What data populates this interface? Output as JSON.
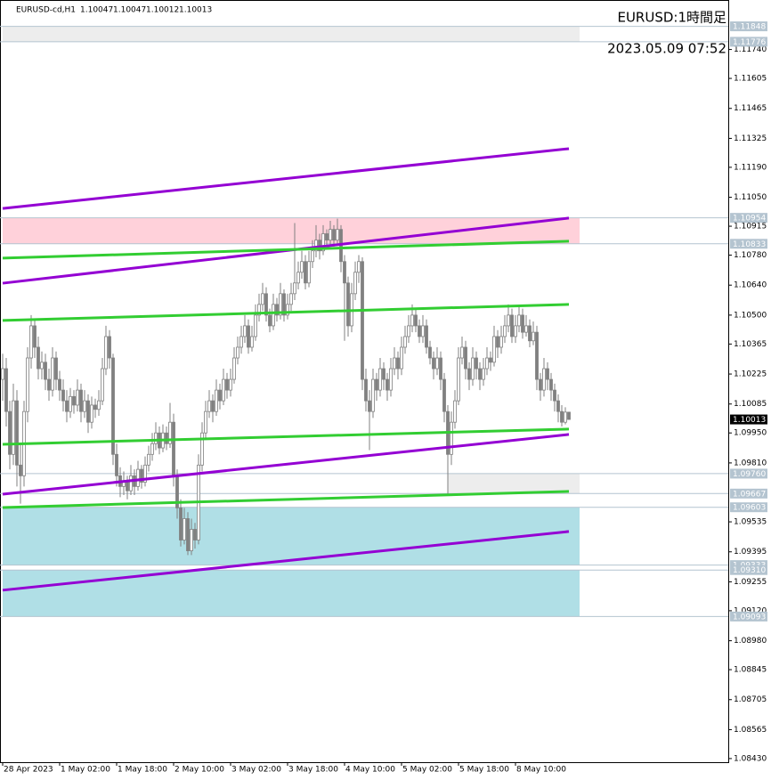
{
  "chart_data": {
    "type": "candlestick",
    "symbol": "EURUSD-cd,H1",
    "title": "EURUSD:1時間足",
    "subtitle": "2023.05.09 07:52",
    "ylim": [
      1.08413,
      1.11971
    ],
    "xlim": [
      -0.75,
      203.75
    ],
    "yticks": [
      {
        "value": 1.1174,
        "label": "1.11740"
      },
      1.11605,
      1.11465,
      1.11325,
      {
        "value": 1.1119,
        "label": "1.11190"
      },
      {
        "value": 1.1105,
        "label": "1.11050"
      },
      1.10915,
      {
        "value": 1.1078,
        "label": "1.10780"
      },
      {
        "value": 1.1064,
        "label": "1.10640"
      },
      {
        "value": 1.105,
        "label": "1.10500"
      },
      1.10365,
      1.10225,
      1.10085,
      {
        "value": 1.0995,
        "label": "1.09950"
      },
      {
        "value": 1.0981,
        "label": "1.09810"
      },
      1.09535,
      1.09395,
      1.09255,
      {
        "value": 1.0912,
        "label": "1.09120"
      },
      {
        "value": 1.0898,
        "label": "1.08980"
      },
      1.08845,
      1.08705,
      1.08565,
      {
        "value": 1.0843,
        "label": "1.08430"
      }
    ],
    "xticks": [
      {
        "value": 0,
        "label": "28 Apr 2023"
      },
      {
        "value": 16,
        "label": "1 May 02:00"
      },
      {
        "value": 32,
        "label": "1 May 18:00"
      },
      {
        "value": 48,
        "label": "2 May 10:00"
      },
      {
        "value": 64,
        "label": "3 May 02:00"
      },
      {
        "value": 80,
        "label": "3 May 18:00"
      },
      {
        "value": 96,
        "label": "4 May 10:00"
      },
      {
        "value": 112,
        "label": "5 May 02:00"
      },
      {
        "value": 128,
        "label": "5 May 18:00"
      },
      {
        "value": 144,
        "label": "8 May 10:00"
      }
    ],
    "levels": [
      1.11848,
      1.11776,
      1.10954,
      1.10833,
      {
        "value": 1.0976,
        "label": "1.09760"
      },
      1.09667,
      1.09603,
      1.09333,
      {
        "value": 1.0931,
        "label": "1.09310"
      },
      1.09093
    ],
    "zones": [
      {
        "from": 1.11848,
        "to": 1.11776,
        "x": [
          0,
          162
        ],
        "color": "#ededed"
      },
      {
        "from": 1.10954,
        "to": 1.10833,
        "x": [
          0,
          162
        ],
        "color": "#ffd1da"
      },
      {
        "from": 1.0976,
        "to": 1.09667,
        "x": [
          125,
          162
        ],
        "color": "#ededed"
      },
      {
        "from": 1.09603,
        "to": 1.09333,
        "x": [
          0,
          162
        ],
        "color": "#b0dfe6"
      },
      {
        "from": 1.0931,
        "to": 1.09093,
        "x": [
          0,
          162
        ],
        "color": "#b0dfe6"
      }
    ],
    "trendlines": [
      {
        "color": "#9400d3",
        "x": [
          0,
          159
        ],
        "y": [
          1.10998,
          1.11277
        ]
      },
      {
        "color": "#9400d3",
        "x": [
          0,
          159
        ],
        "y": [
          1.10649,
          1.10953
        ]
      },
      {
        "color": "#9400d3",
        "x": [
          0,
          159
        ],
        "y": [
          1.09664,
          1.09943
        ]
      },
      {
        "color": "#9400d3",
        "x": [
          0,
          159
        ],
        "y": [
          1.09216,
          1.0949
        ]
      },
      {
        "color": "#32cd32",
        "x": [
          0,
          159
        ],
        "y": [
          1.10766,
          1.10845
        ]
      },
      {
        "color": "#32cd32",
        "x": [
          0,
          159
        ],
        "y": [
          1.10475,
          1.1055
        ]
      },
      {
        "color": "#32cd32",
        "x": [
          0,
          159
        ],
        "y": [
          1.09897,
          1.09968
        ]
      },
      {
        "color": "#32cd32",
        "x": [
          0,
          159
        ],
        "y": [
          1.09602,
          1.09677
        ]
      }
    ],
    "ohlc": [
      [
        1.102,
        1.1032,
        1.101,
        1.1025
      ],
      [
        1.1025,
        1.103,
        1.0998,
        1.1005
      ],
      [
        1.1005,
        1.101,
        1.0978,
        1.0985
      ],
      [
        1.0985,
        1.1018,
        1.098,
        1.101
      ],
      [
        1.101,
        1.1015,
        1.097,
        1.098
      ],
      [
        1.098,
        1.099,
        1.0962,
        1.0975
      ],
      [
        1.0975,
        1.101,
        1.097,
        1.1005
      ],
      [
        1.1005,
        1.1035,
        1.1,
        1.103
      ],
      [
        1.103,
        1.105,
        1.1025,
        1.1045
      ],
      [
        1.1045,
        1.1048,
        1.103,
        1.1035
      ],
      [
        1.1035,
        1.104,
        1.102,
        1.1025
      ],
      [
        1.1025,
        1.1033,
        1.102,
        1.1028
      ],
      [
        1.1028,
        1.1032,
        1.1015,
        1.102
      ],
      [
        1.102,
        1.1025,
        1.101,
        1.1015
      ],
      [
        1.1015,
        1.1035,
        1.1012,
        1.103
      ],
      [
        1.103,
        1.1033,
        1.1015,
        1.102
      ],
      [
        1.102,
        1.1024,
        1.101,
        1.1015
      ],
      [
        1.1015,
        1.102,
        1.1005,
        1.101
      ],
      [
        1.101,
        1.1015,
        1.1,
        1.1005
      ],
      [
        1.1005,
        1.1016,
        1.1002,
        1.1012
      ],
      [
        1.1012,
        1.1015,
        1.1004,
        1.1008
      ],
      [
        1.1008,
        1.102,
        1.1005,
        1.1015
      ],
      [
        1.1015,
        1.1018,
        1.1,
        1.1005
      ],
      [
        1.1005,
        1.1015,
        1.1002,
        1.101
      ],
      [
        1.101,
        1.1013,
        1.0995,
        1.1
      ],
      [
        1.1,
        1.1012,
        1.0997,
        1.1008
      ],
      [
        1.1008,
        1.1011,
        1.1002,
        1.1006
      ],
      [
        1.1006,
        1.1015,
        1.1003,
        1.101
      ],
      [
        1.101,
        1.103,
        1.1008,
        1.1025
      ],
      [
        1.1025,
        1.1045,
        1.1022,
        1.104
      ],
      [
        1.104,
        1.1043,
        1.1025,
        1.103
      ],
      [
        1.103,
        1.1032,
        1.098,
        1.0985
      ],
      [
        1.0985,
        1.099,
        1.097,
        1.0975
      ],
      [
        1.0975,
        1.0979,
        1.0965,
        1.097
      ],
      [
        1.097,
        1.0977,
        1.0966,
        1.0972
      ],
      [
        1.0972,
        1.0975,
        1.0964,
        1.0968
      ],
      [
        1.0968,
        1.098,
        1.0966,
        1.0975
      ],
      [
        1.0975,
        1.0978,
        1.0966,
        1.097
      ],
      [
        1.097,
        1.0982,
        1.0968,
        1.0978
      ],
      [
        1.0978,
        1.098,
        1.0969,
        1.0972
      ],
      [
        1.0972,
        1.0984,
        1.097,
        1.098
      ],
      [
        1.098,
        1.0989,
        1.0977,
        1.0985
      ],
      [
        1.0985,
        1.0995,
        1.0982,
        1.099
      ],
      [
        1.099,
        1.1,
        1.0987,
        1.0995
      ],
      [
        1.0995,
        1.0998,
        1.0985,
        1.0988
      ],
      [
        1.0988,
        1.0999,
        1.0986,
        1.0995
      ],
      [
        1.0995,
        1.0998,
        1.0987,
        1.099
      ],
      [
        1.099,
        1.1009,
        1.0988,
        1.1
      ],
      [
        1.1,
        1.1004,
        1.097,
        1.0975
      ],
      [
        1.0975,
        1.0978,
        1.0955,
        1.096
      ],
      [
        1.096,
        1.0964,
        1.0942,
        1.0945
      ],
      [
        1.0945,
        1.096,
        1.0943,
        1.0955
      ],
      [
        1.0955,
        1.0958,
        1.0938,
        1.094
      ],
      [
        1.094,
        1.0955,
        1.0938,
        1.095
      ],
      [
        1.095,
        1.0953,
        1.0941,
        1.0945
      ],
      [
        1.0945,
        1.0985,
        1.0943,
        1.098
      ],
      [
        1.098,
        1.1,
        1.0977,
        1.0995
      ],
      [
        1.0995,
        1.101,
        1.0992,
        1.1005
      ],
      [
        1.1005,
        1.1015,
        1.1002,
        1.101
      ],
      [
        1.101,
        1.1013,
        1.1,
        1.1005
      ],
      [
        1.1005,
        1.102,
        1.1003,
        1.1015
      ],
      [
        1.1015,
        1.1018,
        1.1006,
        1.101
      ],
      [
        1.101,
        1.1025,
        1.1008,
        1.102
      ],
      [
        1.102,
        1.1023,
        1.1011,
        1.1015
      ],
      [
        1.1015,
        1.1025,
        1.1012,
        1.102
      ],
      [
        1.102,
        1.1035,
        1.1018,
        1.103
      ],
      [
        1.103,
        1.104,
        1.1027,
        1.1035
      ],
      [
        1.1035,
        1.1045,
        1.1032,
        1.104
      ],
      [
        1.104,
        1.105,
        1.1037,
        1.1045
      ],
      [
        1.1045,
        1.1048,
        1.1032,
        1.1035
      ],
      [
        1.1035,
        1.1045,
        1.1033,
        1.104
      ],
      [
        1.104,
        1.1055,
        1.1038,
        1.105
      ],
      [
        1.105,
        1.106,
        1.1047,
        1.1055
      ],
      [
        1.1055,
        1.1065,
        1.1052,
        1.106
      ],
      [
        1.106,
        1.1063,
        1.1047,
        1.105
      ],
      [
        1.105,
        1.1053,
        1.1042,
        1.1045
      ],
      [
        1.1045,
        1.106,
        1.1043,
        1.1055
      ],
      [
        1.1055,
        1.1058,
        1.1047,
        1.105
      ],
      [
        1.105,
        1.1065,
        1.1048,
        1.106
      ],
      [
        1.106,
        1.1062,
        1.1047,
        1.105
      ],
      [
        1.105,
        1.106,
        1.1048,
        1.1055
      ],
      [
        1.1055,
        1.1065,
        1.1052,
        1.106
      ],
      [
        1.106,
        1.1093,
        1.1057,
        1.1065
      ],
      [
        1.1065,
        1.1075,
        1.1062,
        1.107
      ],
      [
        1.107,
        1.108,
        1.1067,
        1.1075
      ],
      [
        1.1075,
        1.1078,
        1.1062,
        1.1065
      ],
      [
        1.1065,
        1.108,
        1.1063,
        1.1075
      ],
      [
        1.1075,
        1.1085,
        1.1072,
        1.108
      ],
      [
        1.108,
        1.1092,
        1.1077,
        1.1085
      ],
      [
        1.1085,
        1.1088,
        1.1076,
        1.108
      ],
      [
        1.108,
        1.1092,
        1.1078,
        1.1088
      ],
      [
        1.1088,
        1.109,
        1.1082,
        1.1085
      ],
      [
        1.1085,
        1.1094,
        1.1083,
        1.109
      ],
      [
        1.109,
        1.1092,
        1.1082,
        1.1085
      ],
      [
        1.1085,
        1.1095,
        1.1083,
        1.109
      ],
      [
        1.109,
        1.1092,
        1.107,
        1.1075
      ],
      [
        1.1075,
        1.1078,
        1.1038,
        1.1065
      ],
      [
        1.1065,
        1.1068,
        1.104,
        1.1045
      ],
      [
        1.1045,
        1.1065,
        1.1042,
        1.106
      ],
      [
        1.106,
        1.1075,
        1.1057,
        1.107
      ],
      [
        1.107,
        1.1078,
        1.1065,
        1.1075
      ],
      [
        1.1075,
        1.1077,
        1.1015,
        1.102
      ],
      [
        1.102,
        1.1025,
        1.1005,
        1.101
      ],
      [
        1.101,
        1.1015,
        1.0987,
        1.1005
      ],
      [
        1.1005,
        1.1025,
        1.1002,
        1.102
      ],
      [
        1.102,
        1.1023,
        1.101,
        1.1015
      ],
      [
        1.1015,
        1.103,
        1.1012,
        1.1025
      ],
      [
        1.1025,
        1.1028,
        1.1015,
        1.102
      ],
      [
        1.102,
        1.1023,
        1.101,
        1.1015
      ],
      [
        1.1015,
        1.103,
        1.1012,
        1.1025
      ],
      [
        1.1025,
        1.1035,
        1.1022,
        1.103
      ],
      [
        1.103,
        1.1033,
        1.102,
        1.1025
      ],
      [
        1.1025,
        1.104,
        1.1022,
        1.1035
      ],
      [
        1.1035,
        1.1045,
        1.1032,
        1.104
      ],
      [
        1.104,
        1.105,
        1.1037,
        1.1045
      ],
      [
        1.1045,
        1.1055,
        1.1042,
        1.105
      ],
      [
        1.105,
        1.1053,
        1.1042,
        1.1045
      ],
      [
        1.1045,
        1.1048,
        1.1037,
        1.104
      ],
      [
        1.104,
        1.105,
        1.1037,
        1.1045
      ],
      [
        1.1045,
        1.1048,
        1.1032,
        1.1035
      ],
      [
        1.1035,
        1.1038,
        1.1027,
        1.103
      ],
      [
        1.103,
        1.1033,
        1.102,
        1.1025
      ],
      [
        1.1025,
        1.1035,
        1.1022,
        1.103
      ],
      [
        1.103,
        1.1033,
        1.1015,
        1.102
      ],
      [
        1.102,
        1.1023,
        1.1,
        1.1005
      ],
      [
        1.1005,
        1.1008,
        1.0966,
        1.0985
      ],
      [
        1.0985,
        1.1005,
        1.098,
        1.1
      ],
      [
        1.1,
        1.1015,
        1.0997,
        1.101
      ],
      [
        1.101,
        1.1035,
        1.1008,
        1.103
      ],
      [
        1.103,
        1.104,
        1.1027,
        1.1035
      ],
      [
        1.1035,
        1.1038,
        1.102,
        1.1025
      ],
      [
        1.1025,
        1.1028,
        1.1015,
        1.102
      ],
      [
        1.102,
        1.1035,
        1.1017,
        1.103
      ],
      [
        1.103,
        1.1033,
        1.102,
        1.1025
      ],
      [
        1.1025,
        1.1028,
        1.1015,
        1.102
      ],
      [
        1.102,
        1.103,
        1.1017,
        1.1025
      ],
      [
        1.1025,
        1.1035,
        1.1022,
        1.103
      ],
      [
        1.103,
        1.1033,
        1.1024,
        1.1028
      ],
      [
        1.1028,
        1.1045,
        1.1026,
        1.104
      ],
      [
        1.104,
        1.1043,
        1.103,
        1.1035
      ],
      [
        1.1035,
        1.1045,
        1.1032,
        1.104
      ],
      [
        1.104,
        1.105,
        1.1037,
        1.1045
      ],
      [
        1.1045,
        1.1055,
        1.1042,
        1.105
      ],
      [
        1.105,
        1.1053,
        1.1037,
        1.104
      ],
      [
        1.104,
        1.105,
        1.1037,
        1.1045
      ],
      [
        1.1045,
        1.1054,
        1.1042,
        1.105
      ],
      [
        1.105,
        1.1053,
        1.1039,
        1.1042
      ],
      [
        1.1042,
        1.105,
        1.104,
        1.1045
      ],
      [
        1.1045,
        1.1048,
        1.1035,
        1.1038
      ],
      [
        1.1038,
        1.1047,
        1.1036,
        1.1042
      ],
      [
        1.1042,
        1.1045,
        1.1015,
        1.102
      ],
      [
        1.102,
        1.1023,
        1.101,
        1.1015
      ],
      [
        1.1015,
        1.103,
        1.1012,
        1.1025
      ],
      [
        1.1025,
        1.1028,
        1.1015,
        1.102
      ],
      [
        1.102,
        1.1023,
        1.101,
        1.1015
      ],
      [
        1.1015,
        1.1018,
        1.1005,
        1.101
      ],
      [
        1.101,
        1.1013,
        1.1,
        1.1005
      ],
      [
        1.1005,
        1.1008,
        1.0998,
        1.1
      ],
      [
        1.1,
        1.1007,
        1.0999,
        1.10047
      ],
      [
        1.10047,
        1.10047,
        1.10012,
        1.10013
      ]
    ]
  }
}
